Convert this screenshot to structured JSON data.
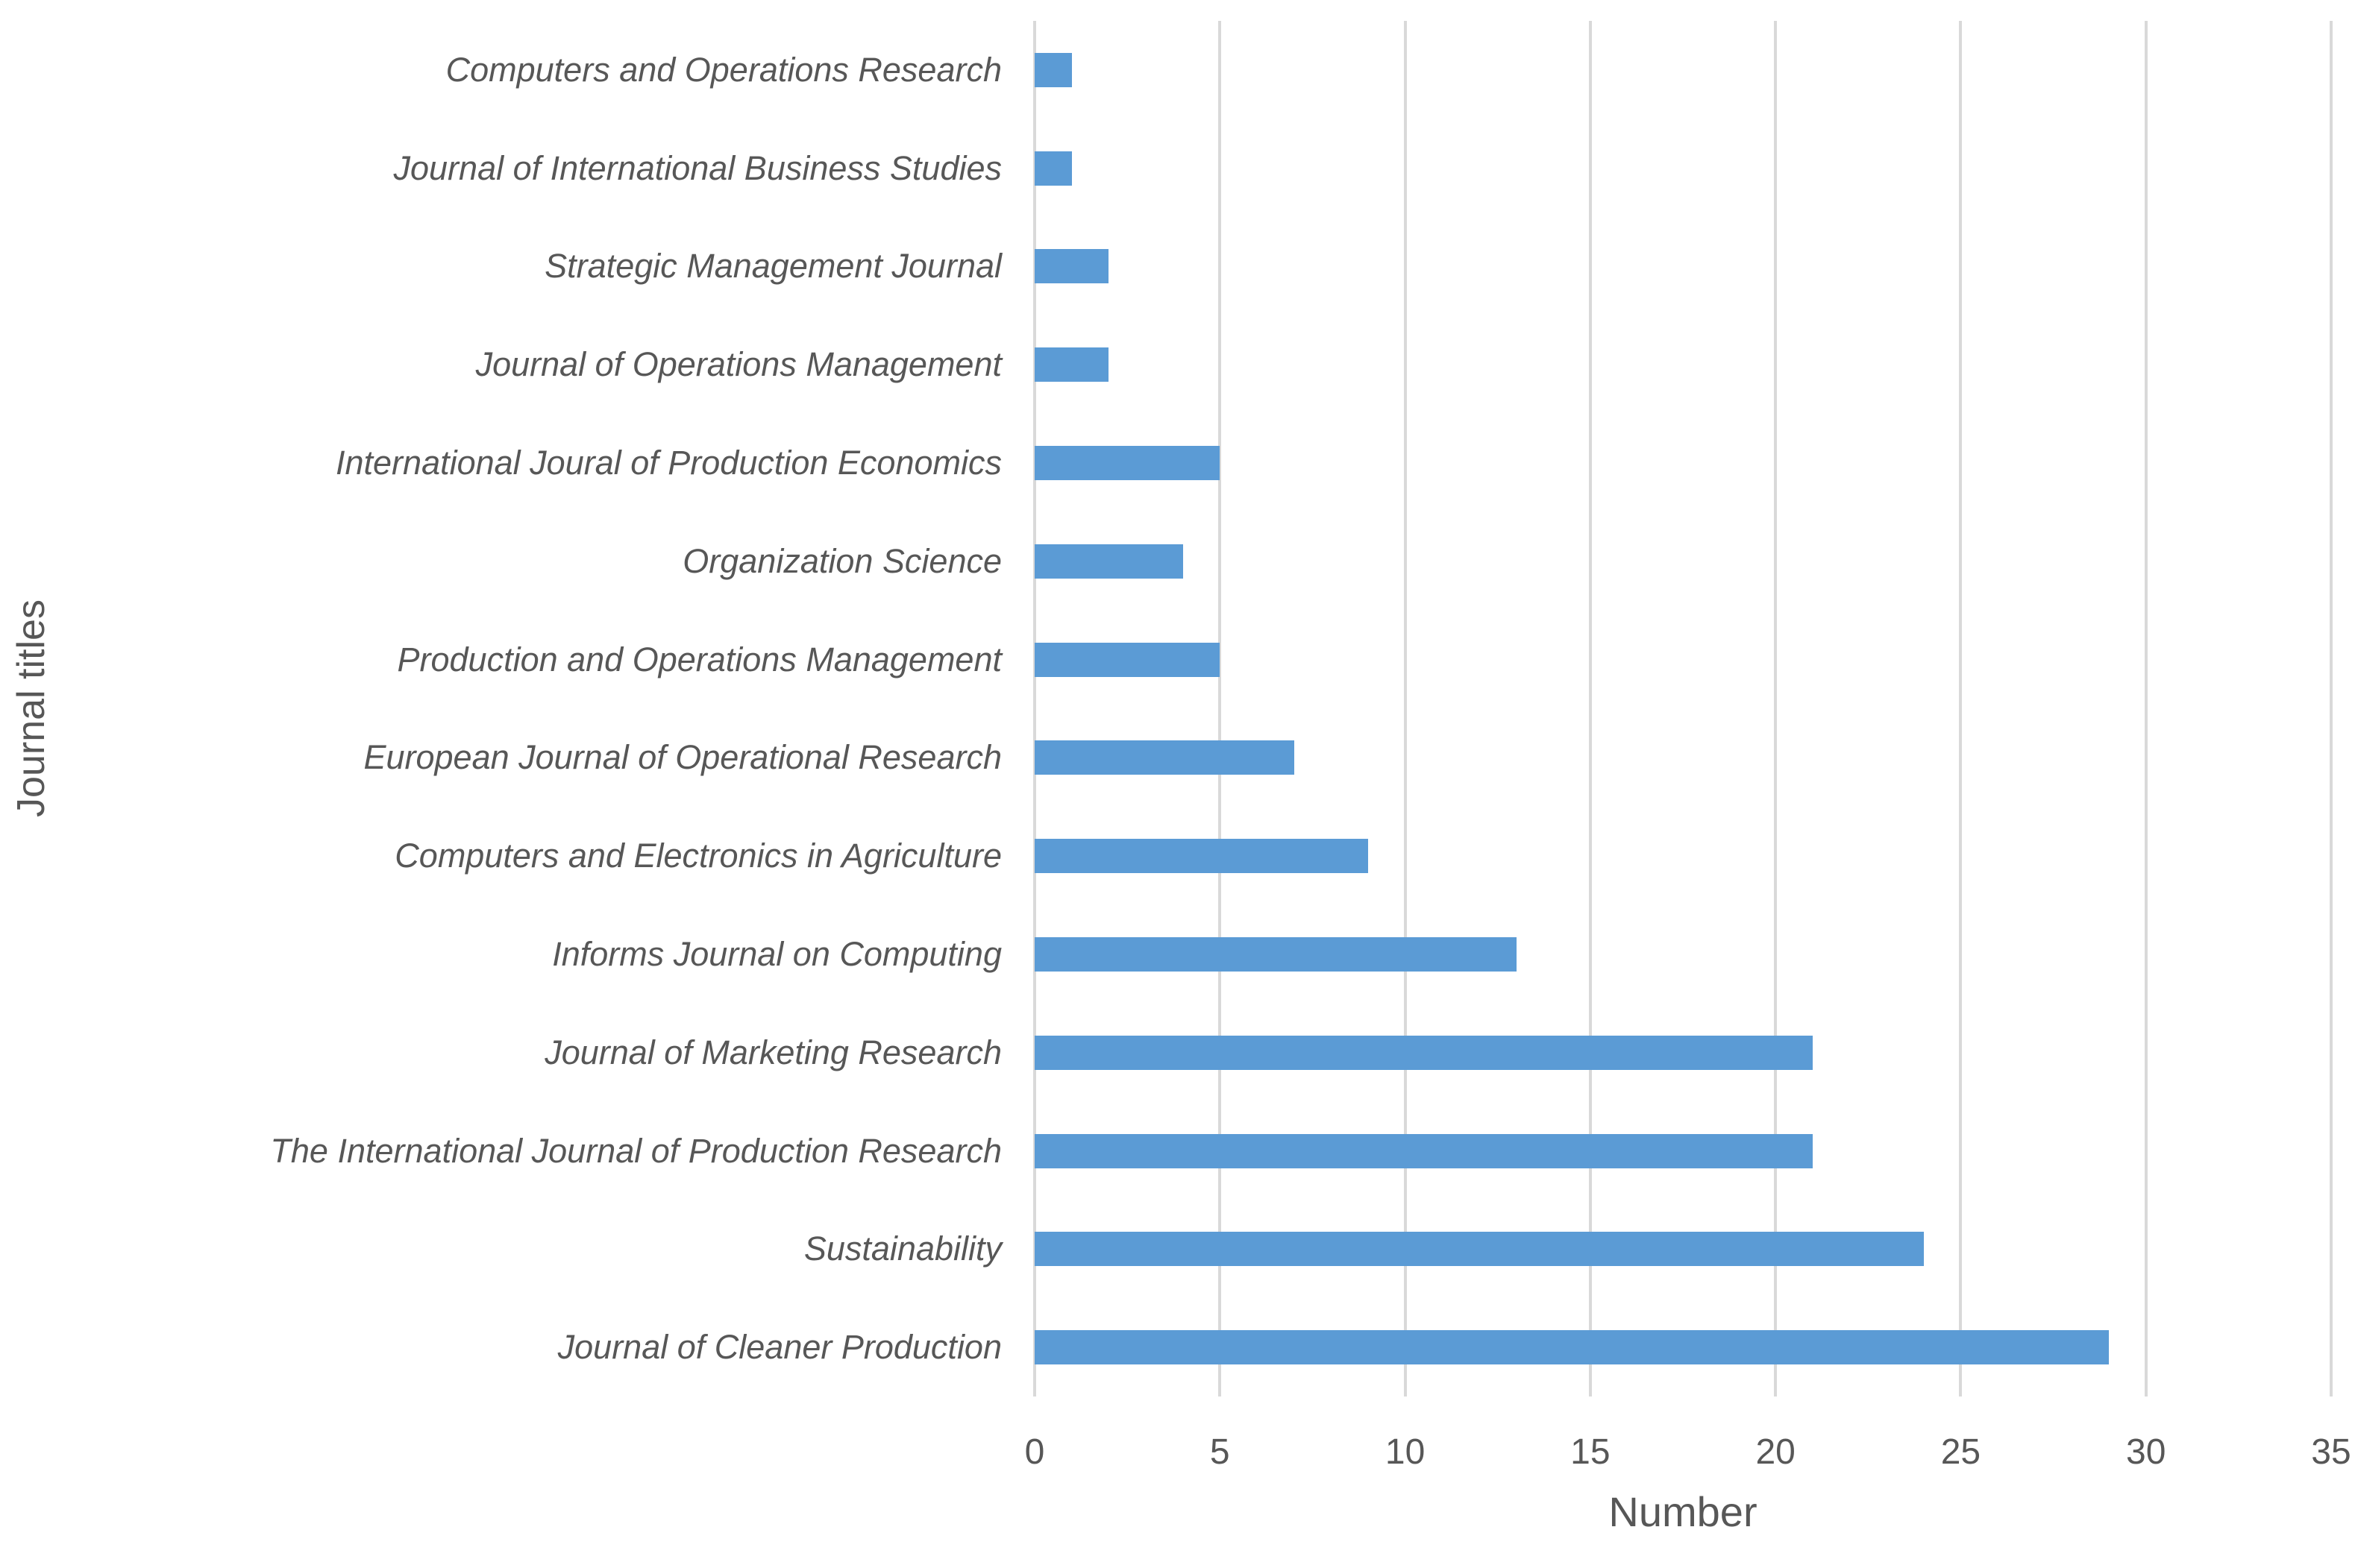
{
  "chart_data": {
    "type": "bar",
    "orientation": "horizontal",
    "title": "",
    "xlabel": "Number",
    "ylabel": "Journal titles",
    "categories": [
      "Computers and Operations Research",
      "Journal of International Business Studies",
      "Strategic Management Journal",
      "Journal of Operations Management",
      "International Joural of Production Economics",
      "Organization Science",
      "Production and Operations Management",
      "European Journal of Operational Research",
      "Computers and Electronics in Agriculture",
      "Informs Journal on Computing",
      "Journal of Marketing Research",
      "The International Journal of Production Research",
      "Sustainability",
      "Journal of Cleaner Production"
    ],
    "values": [
      1,
      1,
      2,
      2,
      5,
      4,
      5,
      7,
      9,
      13,
      21,
      21,
      24,
      29
    ],
    "xlim": [
      0,
      35
    ],
    "xticks": [
      0,
      5,
      10,
      15,
      20,
      25,
      30,
      35
    ],
    "grid": "vertical-only",
    "legend": "none",
    "bar_color": "#5b9bd5",
    "gridline_color": "#d9d9d9",
    "text_color": "#575757"
  }
}
